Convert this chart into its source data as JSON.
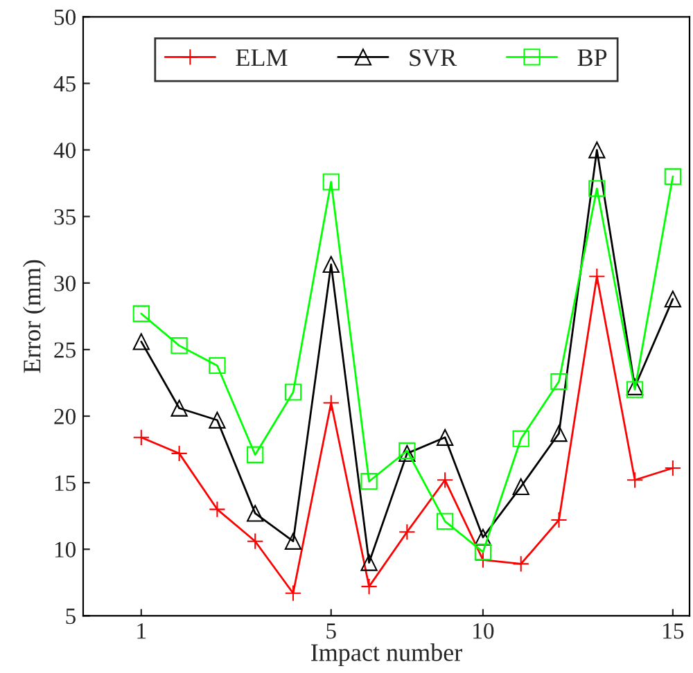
{
  "chart_data": {
    "type": "line",
    "xlabel": "Impact number",
    "ylabel": "Error (mm)",
    "categories": [
      "1",
      null,
      null,
      null,
      null,
      "5",
      null,
      null,
      null,
      "10",
      null,
      null,
      null,
      null,
      "15"
    ],
    "series": [
      {
        "name": "ELM",
        "color": "#ff0000",
        "marker": "cross",
        "values": [
          18.4,
          17.2,
          13.0,
          10.6,
          6.7,
          21.0,
          7.2,
          11.3,
          15.2,
          9.2,
          8.9,
          12.2,
          30.5,
          15.2,
          16.1
        ]
      },
      {
        "name": "SVR",
        "color": "#000000",
        "marker": "triangle",
        "values": [
          25.6,
          20.6,
          19.7,
          12.7,
          10.6,
          31.4,
          9.0,
          17.2,
          18.4,
          10.9,
          14.7,
          18.7,
          40.0,
          22.2,
          28.8
        ]
      },
      {
        "name": "BP",
        "color": "#00ff00",
        "marker": "square",
        "values": [
          27.7,
          25.3,
          23.8,
          17.1,
          21.8,
          37.6,
          15.1,
          17.4,
          12.1,
          9.8,
          18.3,
          22.6,
          37.1,
          22.0,
          38.0
        ]
      }
    ],
    "ylim": [
      5,
      50
    ],
    "yticks": [
      5,
      10,
      15,
      20,
      25,
      30,
      35,
      40,
      45,
      50
    ],
    "grid": false,
    "legend": "top",
    "line_style": "solid"
  }
}
